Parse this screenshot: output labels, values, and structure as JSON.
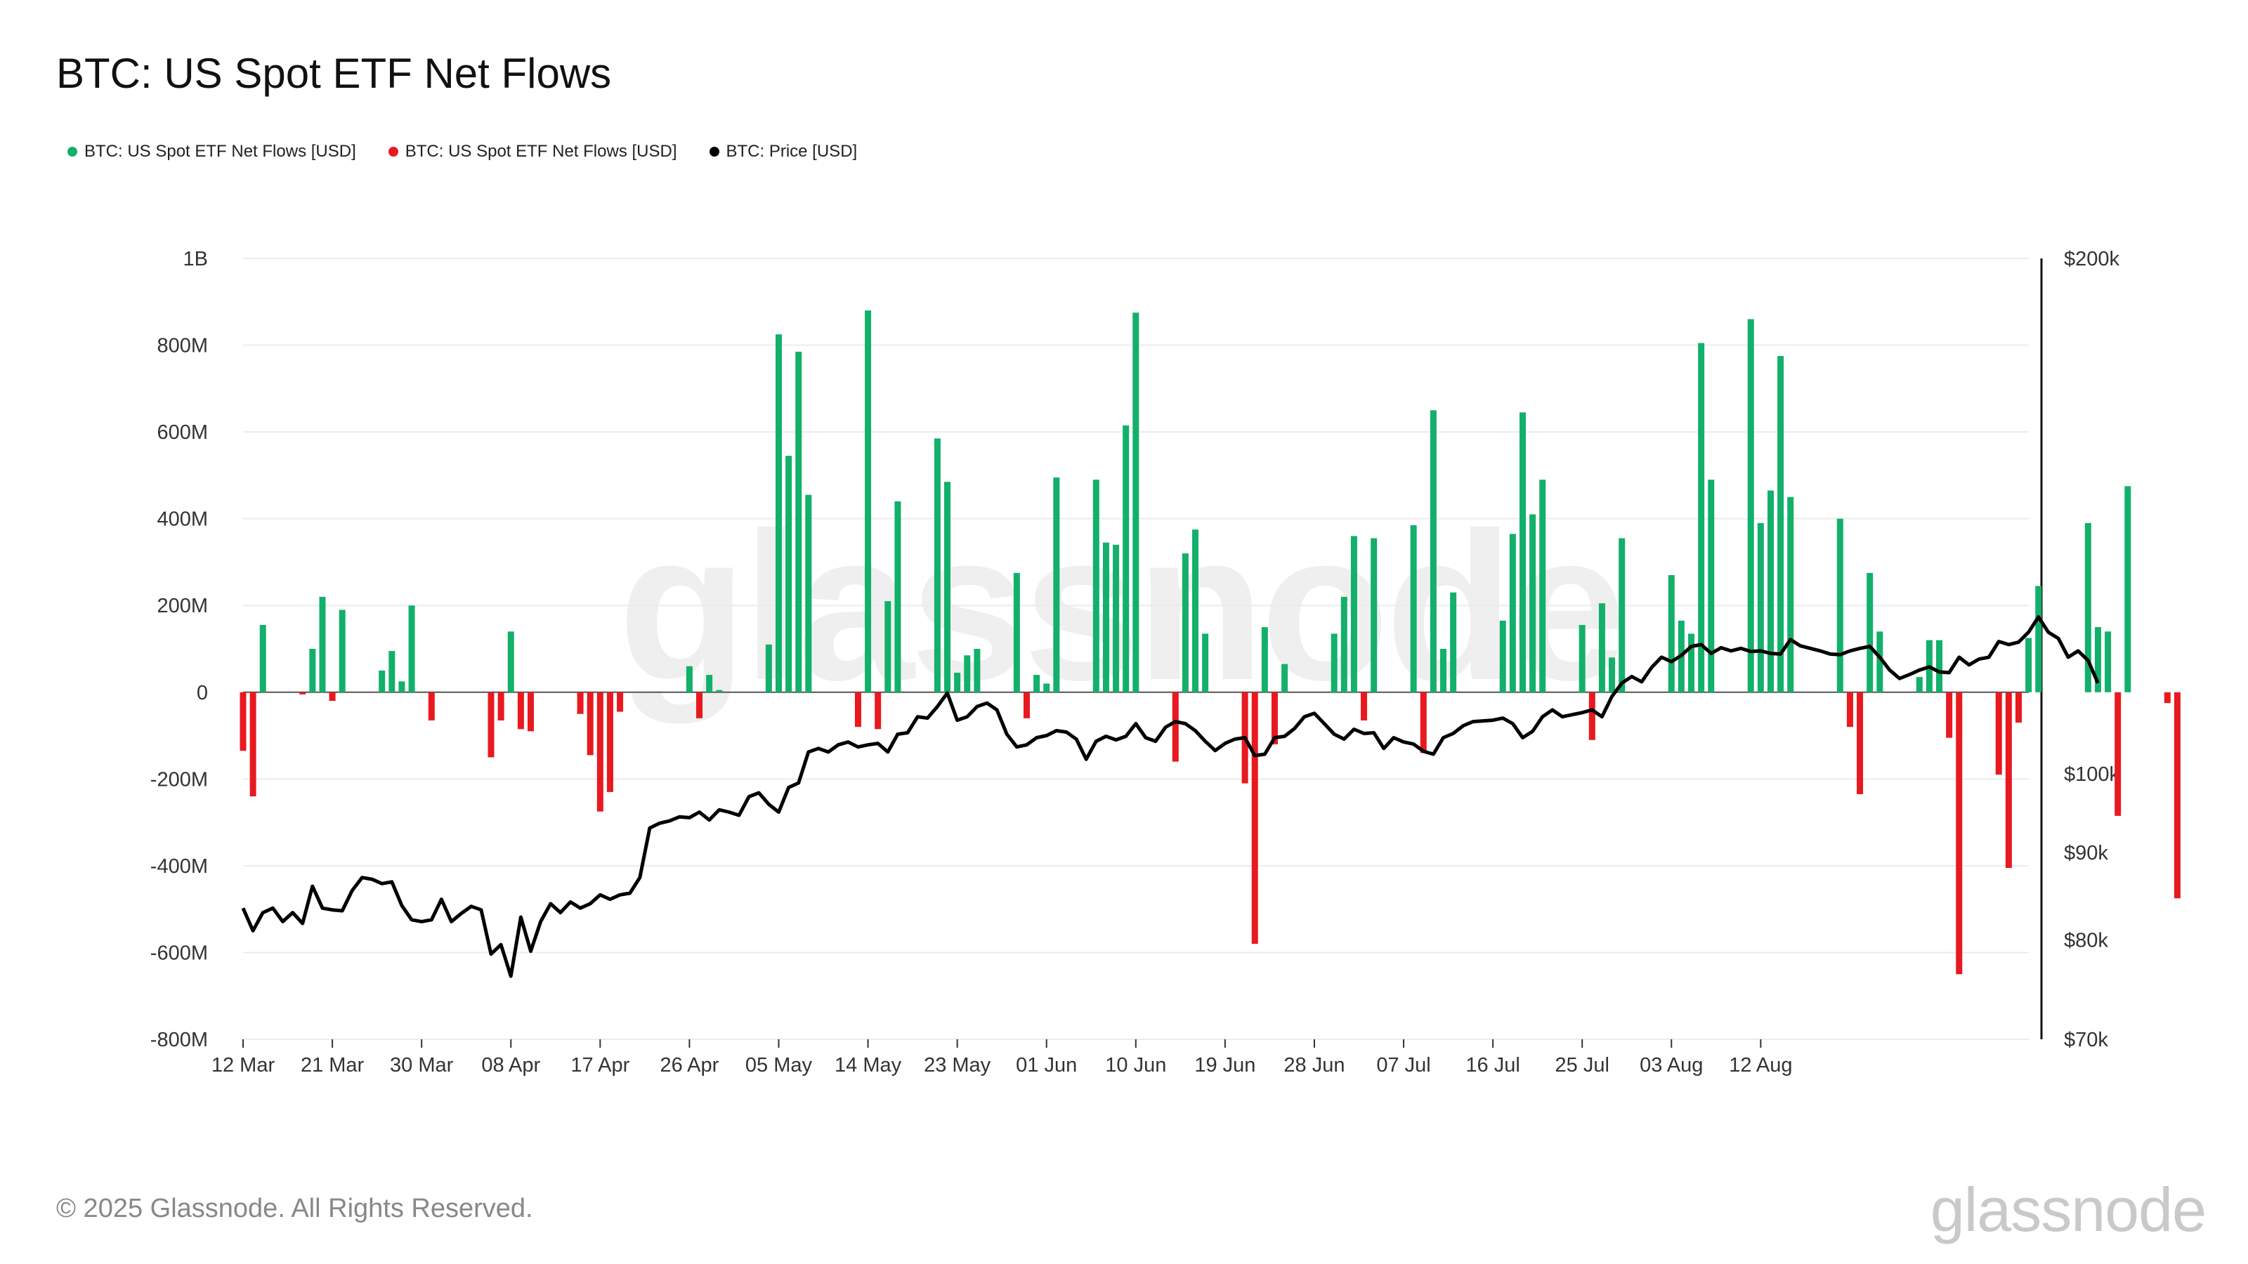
{
  "title": "BTC: US Spot ETF Net Flows",
  "legend": [
    {
      "label": "BTC: US Spot ETF Net Flows [USD]",
      "color": "#12b06b"
    },
    {
      "label": "BTC: US Spot ETF Net Flows [USD]",
      "color": "#e8191f"
    },
    {
      "label": "BTC: Price [USD]",
      "color": "#000000"
    }
  ],
  "watermark": "glassnode",
  "footer": "© 2025 Glassnode. All Rights Reserved.",
  "brand": "glassnode",
  "chart_data": {
    "type": "bar",
    "title": "BTC: US Spot ETF Net Flows",
    "x_tick_labels": [
      "12 Mar",
      "21 Mar",
      "30 Mar",
      "08 Apr",
      "17 Apr",
      "26 Apr",
      "05 May",
      "14 May",
      "23 May",
      "01 Jun",
      "10 Jun",
      "19 Jun",
      "28 Jun",
      "07 Jul",
      "16 Jul",
      "25 Jul",
      "03 Aug",
      "12 Aug"
    ],
    "left_axis": {
      "ticks": [
        "1B",
        "800M",
        "600M",
        "400M",
        "200M",
        "0",
        "-200M",
        "-400M",
        "-600M",
        "-800M"
      ],
      "range_usd_millions": [
        -800,
        1000
      ]
    },
    "right_axis": {
      "ticks": [
        "$200k",
        "$100k",
        "$90k",
        "$80k",
        "$70k"
      ],
      "scale": "log",
      "range_usd": [
        70000,
        200000
      ]
    },
    "grid": true,
    "colors": {
      "positive": "#12b06b",
      "negative": "#e8191f",
      "price": "#000000"
    },
    "start_date": "2025-03-12",
    "series": [
      {
        "name": "BTC: US Spot ETF Net Flows [USD]",
        "unit": "USD millions",
        "values": [
          -135,
          -240,
          155,
          0,
          0,
          0,
          -5,
          100,
          220,
          -20,
          190,
          0,
          0,
          0,
          50,
          95,
          25,
          200,
          0,
          -65,
          0,
          0,
          0,
          0,
          0,
          -150,
          -65,
          140,
          -85,
          -90,
          0,
          0,
          0,
          0,
          -50,
          -145,
          -275,
          -230,
          -45,
          0,
          0,
          0,
          0,
          0,
          0,
          60,
          -60,
          40,
          5,
          0,
          0,
          0,
          0,
          110,
          825,
          545,
          785,
          455,
          0,
          0,
          0,
          0,
          -80,
          880,
          -85,
          210,
          440,
          0,
          0,
          0,
          585,
          485,
          45,
          85,
          100,
          0,
          0,
          0,
          275,
          -60,
          40,
          20,
          495,
          0,
          0,
          0,
          490,
          345,
          340,
          615,
          875,
          0,
          0,
          0,
          -160,
          320,
          375,
          135,
          0,
          0,
          0,
          -210,
          -580,
          150,
          -120,
          65,
          0,
          0,
          0,
          0,
          135,
          220,
          360,
          -65,
          355,
          0,
          0,
          0,
          385,
          -140,
          650,
          100,
          230,
          0,
          0,
          0,
          0,
          165,
          365,
          645,
          410,
          490,
          0,
          0,
          0,
          155,
          -110,
          205,
          80,
          355,
          0,
          0,
          0,
          0,
          270,
          165,
          135,
          805,
          490,
          0,
          0,
          0,
          860,
          390,
          465,
          775,
          450,
          0,
          0,
          0,
          0,
          400,
          -80,
          -235,
          275,
          140,
          0,
          0,
          0,
          35,
          120,
          120,
          -105,
          -650,
          0,
          0,
          0,
          -190,
          -405,
          -70,
          125,
          245,
          0,
          0,
          0,
          0,
          390,
          150,
          140,
          -285,
          475,
          0,
          0,
          0,
          -25,
          -475
        ]
      },
      {
        "name": "BTC: Price [USD]",
        "unit": "USD",
        "values": [
          83500,
          81000,
          83000,
          83500,
          82000,
          83000,
          81800,
          86000,
          83500,
          83300,
          83200,
          85500,
          87000,
          86800,
          86300,
          86500,
          83800,
          82200,
          82000,
          82200,
          84500,
          82000,
          82900,
          83700,
          83300,
          78500,
          79500,
          76200,
          82500,
          78800,
          82000,
          84000,
          83000,
          84200,
          83500,
          84000,
          85000,
          84500,
          85000,
          85200,
          87000,
          93000,
          93600,
          93900,
          94400,
          94300,
          95000,
          94000,
          95300,
          95000,
          94600,
          97000,
          97500,
          96000,
          95000,
          98200,
          98800,
          103000,
          103500,
          103000,
          104000,
          104400,
          103700,
          104000,
          104200,
          103000,
          105500,
          105700,
          108000,
          107800,
          109500,
          111500,
          107500,
          108000,
          109500,
          110000,
          109000,
          105500,
          103700,
          104000,
          105000,
          105300,
          106000,
          105800,
          104800,
          102000,
          104500,
          105200,
          104700,
          105200,
          107000,
          105000,
          104500,
          106500,
          107300,
          107000,
          106000,
          104500,
          103200,
          104200,
          104800,
          105000,
          102500,
          102700,
          105000,
          105200,
          106300,
          108000,
          108500,
          107000,
          105500,
          104800,
          106200,
          105600,
          105700,
          103500,
          105000,
          104400,
          104100,
          103100,
          102700,
          105000,
          105600,
          106700,
          107300,
          107400,
          107500,
          107800,
          107000,
          105000,
          105900,
          108000,
          109000,
          108000,
          108300,
          108600,
          109000,
          108000,
          111000,
          113000,
          114000,
          113200,
          115400,
          117000,
          116300,
          117300,
          118700,
          119000,
          117600,
          118500,
          118000,
          118400,
          117900,
          118000,
          117600,
          117500,
          119800,
          118800,
          118400,
          118000,
          117500,
          117400,
          118000,
          118400,
          118700,
          117000,
          115000,
          113700,
          114300,
          115000,
          115500,
          114700,
          114600,
          117000,
          115800,
          116700,
          117000,
          119500,
          119000,
          119400,
          121000,
          123500,
          121000,
          120000,
          117000,
          118000,
          116500,
          113000
        ]
      }
    ]
  }
}
